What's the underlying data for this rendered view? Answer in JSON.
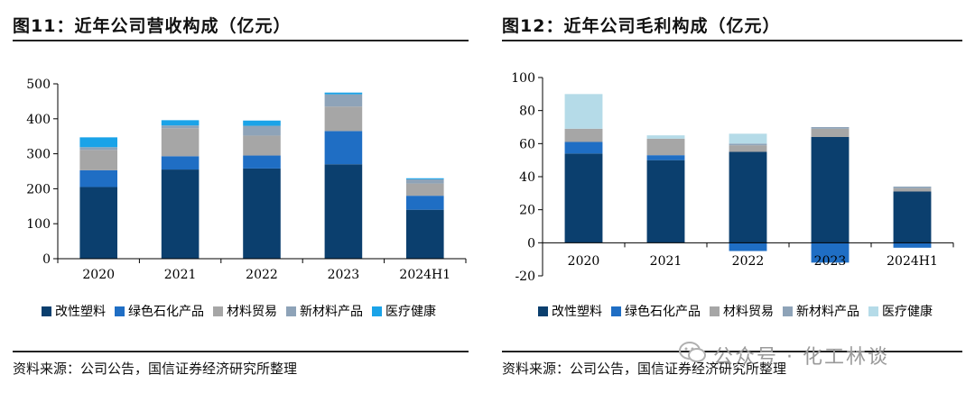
{
  "left": {
    "title": "图11：近年公司营收构成（亿元）",
    "source": "资料来源：公司公告，国信证券经济研究所整理"
  },
  "right": {
    "title": "图12：近年公司毛利构成（亿元）",
    "source": "资料来源：公司公告，国信证券经济研究所整理"
  },
  "watermark": "公众号 · 化工林谈",
  "colors": {
    "改性塑料": "#0b3f6e",
    "绿色石化产品": "#1f6ec4",
    "材料贸易": "#a6a6a6",
    "新材料产品": "#8ea3b8",
    "医疗健康": "#1aa3e8"
  },
  "chart_data": [
    {
      "type": "bar",
      "stacked": true,
      "title": "近年公司营收构成（亿元）",
      "categories": [
        "2020",
        "2021",
        "2022",
        "2023",
        "2024H1"
      ],
      "ylim": [
        0,
        500
      ],
      "yticks": [
        0,
        100,
        200,
        300,
        400,
        500
      ],
      "legend": "bottom",
      "series": [
        {
          "name": "改性塑料",
          "values": [
            205,
            255,
            258,
            270,
            140
          ]
        },
        {
          "name": "绿色石化产品",
          "values": [
            48,
            38,
            37,
            95,
            40
          ]
        },
        {
          "name": "材料贸易",
          "values": [
            58,
            80,
            57,
            70,
            35
          ]
        },
        {
          "name": "新材料产品",
          "values": [
            8,
            8,
            28,
            35,
            12
          ]
        },
        {
          "name": "医疗健康",
          "values": [
            28,
            15,
            15,
            5,
            3
          ]
        }
      ]
    },
    {
      "type": "bar",
      "stacked": true,
      "title": "近年公司毛利构成（亿元）",
      "categories": [
        "2020",
        "2021",
        "2022",
        "2023",
        "2024H1"
      ],
      "ylim": [
        -20,
        100
      ],
      "yticks": [
        -20,
        0,
        20,
        40,
        60,
        80,
        100
      ],
      "legend": "bottom",
      "colors": {
        "改性塑料": "#0b3f6e",
        "绿色石化产品": "#1f6ec4",
        "材料贸易": "#a6a6a6",
        "新材料产品": "#8ea3b8",
        "医疗健康": "#b5dbe8"
      },
      "series": [
        {
          "name": "改性塑料",
          "values": [
            54,
            50,
            55,
            64,
            31
          ]
        },
        {
          "name": "绿色石化产品",
          "values": [
            7,
            3,
            -5,
            -12,
            -3
          ]
        },
        {
          "name": "材料贸易",
          "values": [
            8,
            10,
            4,
            5,
            2
          ]
        },
        {
          "name": "新材料产品",
          "values": [
            0,
            0,
            1,
            1,
            1
          ]
        },
        {
          "name": "医疗健康",
          "values": [
            21,
            2,
            6,
            0,
            0
          ]
        }
      ]
    }
  ]
}
